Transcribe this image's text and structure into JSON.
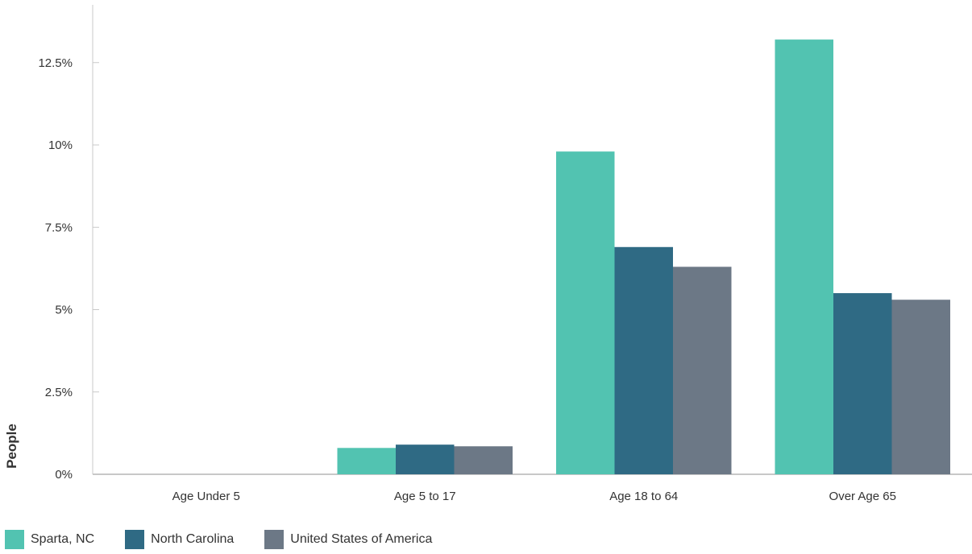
{
  "chart_data": {
    "type": "bar",
    "categories": [
      "Age Under 5",
      "Age 5 to 17",
      "Age 18 to 64",
      "Over Age 65"
    ],
    "series": [
      {
        "name": "Sparta, NC",
        "color": "#52c3b1",
        "values": [
          0,
          0.8,
          9.8,
          13.2
        ]
      },
      {
        "name": "North Carolina",
        "color": "#2f6a84",
        "values": [
          0,
          0.9,
          6.9,
          5.5
        ]
      },
      {
        "name": "United States of America",
        "color": "#6c7886",
        "values": [
          0,
          0.85,
          6.3,
          5.3
        ]
      }
    ],
    "ylabel": "People",
    "xlabel": "",
    "ylim": [
      0,
      14.5
    ],
    "yticks": [
      0,
      2.5,
      5,
      7.5,
      10,
      12.5
    ],
    "ytick_labels": [
      "0%",
      "2.5%",
      "5%",
      "7.5%",
      "10%",
      "12.5%"
    ],
    "grid": false,
    "legend_position": "bottom-left"
  }
}
